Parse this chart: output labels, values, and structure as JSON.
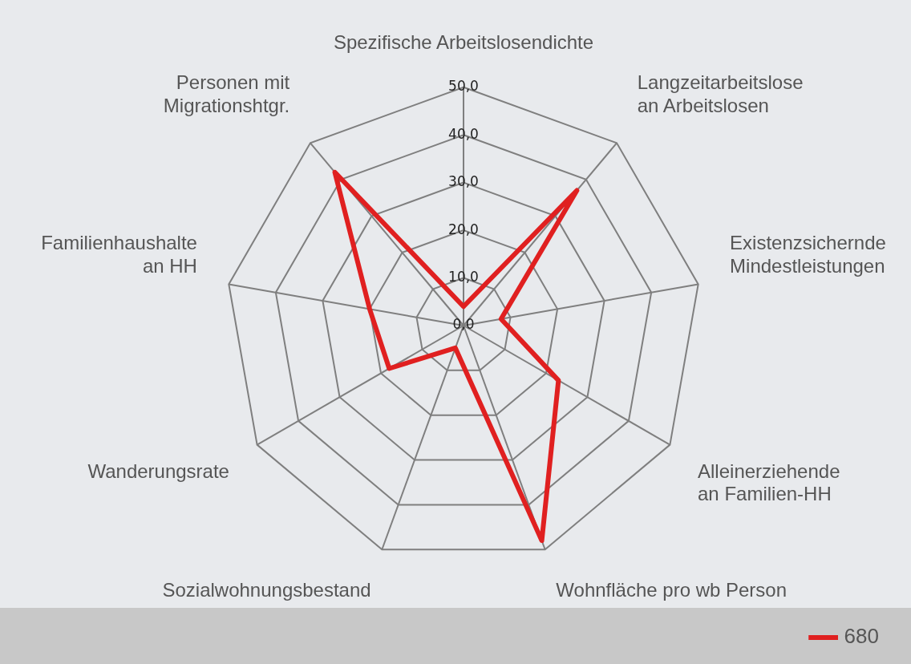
{
  "chart_data": {
    "type": "radar",
    "categories": [
      "Spezifische Arbeitslosendichte",
      "Langzeitarbeitslose an Arbeitslosen",
      "Existenzsichernde Mindestleistungen",
      "Alleinerziehende an Familien-HH",
      "Wohnfläche pro wb Person",
      "Sozialwohnungsbestand",
      "Wanderungsrate",
      "Familienhaushalte an HH",
      "Personen mit Migrationshtgr."
    ],
    "series": [
      {
        "name": "680",
        "color": "#e02020",
        "values": [
          4,
          37,
          8,
          23,
          48,
          5,
          18,
          20,
          42
        ]
      }
    ],
    "ylim": [
      0,
      50
    ],
    "yticks": [
      {
        "value": 0,
        "label": "0,0"
      },
      {
        "value": 10,
        "label": "10,0"
      },
      {
        "value": 20,
        "label": "20,0"
      },
      {
        "value": 30,
        "label": "30,0"
      },
      {
        "value": 40,
        "label": "40,0"
      },
      {
        "value": 50,
        "label": "50,0"
      }
    ],
    "grid": true,
    "legend": "bottom right",
    "marker": "none",
    "line_style": "solid"
  }
}
